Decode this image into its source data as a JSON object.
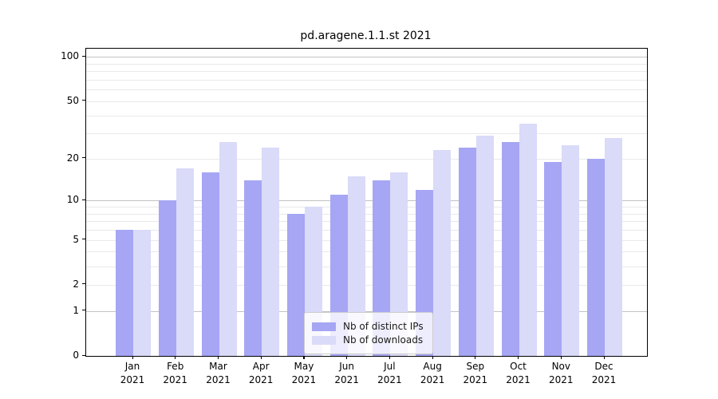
{
  "chart_data": {
    "type": "bar",
    "title": "pd.aragene.1.1.st 2021",
    "categories": [
      "Jan",
      "Feb",
      "Mar",
      "Apr",
      "May",
      "Jun",
      "Jul",
      "Aug",
      "Sep",
      "Oct",
      "Nov",
      "Dec"
    ],
    "category_year": "2021",
    "series": [
      {
        "name": "Nb of distinct IPs",
        "color": "#a6a6f4",
        "values": [
          6,
          10,
          16,
          14,
          8,
          11,
          14,
          12,
          24,
          26,
          19,
          20
        ]
      },
      {
        "name": "Nb of downloads",
        "color": "#dadaf9",
        "values": [
          6,
          17,
          26,
          24,
          9,
          15,
          16,
          23,
          29,
          35,
          25,
          28
        ]
      }
    ],
    "yscale": "log1p",
    "ylabel": "",
    "xlabel": "",
    "ylim": [
      0,
      113
    ],
    "y_ticks": [
      0,
      1,
      2,
      5,
      10,
      20,
      50,
      100
    ],
    "y_gridlines_major": [
      1,
      10,
      100
    ],
    "y_gridlines_minor": [
      2,
      3,
      4,
      5,
      6,
      7,
      8,
      9,
      20,
      30,
      40,
      50,
      60,
      70,
      80,
      90
    ],
    "grid": true,
    "legend_position": "lower center",
    "frame_color": "#000000",
    "gridline_minor_color": "#e9e9e9",
    "gridline_major_color": "#c2c2c2"
  }
}
